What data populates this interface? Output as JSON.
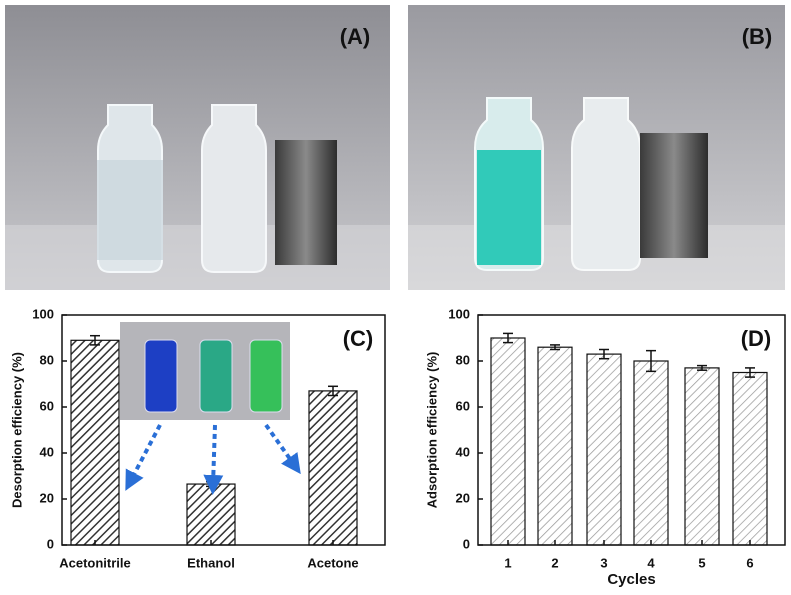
{
  "photo_panels": [
    {
      "label": "(A)"
    },
    {
      "label": "(B)"
    }
  ],
  "chart_data": [
    {
      "type": "bar",
      "panel_label": "(C)",
      "y_label": "Desorption efficiency (%)",
      "categories": [
        "Acetonitrile",
        "Ethanol",
        "Acetone"
      ],
      "values": [
        89,
        26.5,
        67
      ],
      "errors": [
        2,
        1,
        2
      ],
      "color": "#333333",
      "ylim": [
        0,
        100
      ],
      "yticks": [
        0,
        20,
        40,
        60,
        80,
        100
      ]
    },
    {
      "type": "bar",
      "panel_label": "(D)",
      "y_label": "Adsorption efficiency (%)",
      "x_label": "Cycles",
      "categories": [
        "1",
        "2",
        "3",
        "4",
        "5",
        "6"
      ],
      "values": [
        90,
        86,
        83,
        80,
        77,
        75
      ],
      "errors": [
        2,
        1,
        2,
        4.5,
        1,
        2
      ],
      "color": "#9a9a9a",
      "ylim": [
        0,
        100
      ],
      "yticks": [
        0,
        20,
        40,
        60,
        80,
        100
      ]
    }
  ]
}
